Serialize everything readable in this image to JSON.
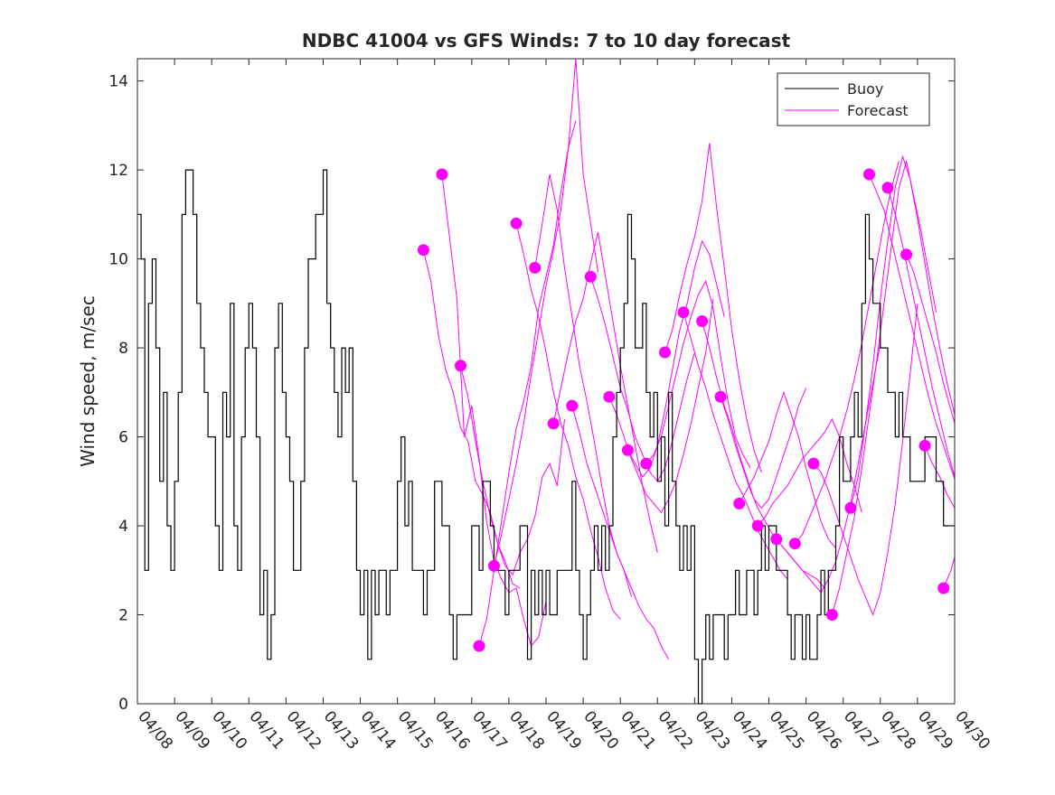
{
  "chart_data": {
    "type": "line",
    "title": "NDBC 41004 vs GFS Winds: 7 to 10 day forecast",
    "xlabel": "",
    "ylabel": "Wind speed, m/sec",
    "x_range": [
      "04/08",
      "04/30"
    ],
    "ylim": [
      0,
      14.5
    ],
    "x_tick_labels": [
      "04/08",
      "04/09",
      "04/10",
      "04/11",
      "04/12",
      "04/13",
      "04/14",
      "04/15",
      "04/16",
      "04/17",
      "04/18",
      "04/19",
      "04/20",
      "04/21",
      "04/22",
      "04/23",
      "04/24",
      "04/25",
      "04/26",
      "04/27",
      "04/28",
      "04/29",
      "04/30"
    ],
    "y_ticks": [
      0,
      2,
      4,
      6,
      8,
      10,
      12,
      14
    ],
    "grid": false,
    "legend": {
      "placement": "top-right",
      "entries": [
        "Buoy",
        "Forecast"
      ]
    },
    "colors": {
      "buoy": "#000000",
      "forecast": "#ff00ff",
      "axes": "#262626"
    },
    "series": [
      {
        "name": "Buoy",
        "style": "black step line",
        "x_days_from_0408": [
          0,
          0.1,
          0.2,
          0.3,
          0.4,
          0.5,
          0.6,
          0.7,
          0.8,
          0.9,
          1.0,
          1.1,
          1.2,
          1.3,
          1.4,
          1.5,
          1.6,
          1.7,
          1.8,
          1.9,
          2.0,
          2.1,
          2.2,
          2.3,
          2.4,
          2.5,
          2.6,
          2.7,
          2.8,
          2.9,
          3.0,
          3.1,
          3.2,
          3.3,
          3.4,
          3.5,
          3.6,
          3.7,
          3.8,
          3.9,
          4.0,
          4.1,
          4.2,
          4.3,
          4.4,
          4.5,
          4.6,
          4.7,
          4.8,
          4.9,
          5.0,
          5.1,
          5.2,
          5.3,
          5.4,
          5.5,
          5.6,
          5.7,
          5.8,
          5.9,
          6.0,
          6.1,
          6.2,
          6.3,
          6.4,
          6.5,
          6.6,
          6.7,
          6.8,
          6.9,
          7.0,
          7.1,
          7.2,
          7.3,
          7.4,
          7.5,
          7.6,
          7.7,
          7.8,
          7.9,
          8.0,
          8.1,
          8.2,
          8.3,
          8.4,
          8.5,
          8.6,
          8.7,
          8.8,
          8.9,
          9.0,
          9.1,
          9.2,
          9.3,
          9.4,
          9.5,
          9.6,
          9.7,
          9.8,
          9.9,
          10.0,
          10.1,
          10.2,
          10.3,
          10.4,
          10.5,
          10.6,
          10.7,
          10.8,
          10.9,
          11.0,
          11.1,
          11.2,
          11.3,
          11.4,
          11.5,
          11.6,
          11.7,
          11.8,
          11.9,
          12.0,
          12.1,
          12.2,
          12.3,
          12.4,
          12.5,
          12.6,
          12.7,
          12.8,
          12.9,
          13.0,
          13.1,
          13.2,
          13.3,
          13.4,
          13.5,
          13.6,
          13.7,
          13.8,
          13.9,
          14.0,
          14.1,
          14.2,
          14.3,
          14.4,
          14.5,
          14.6,
          14.7,
          14.8,
          14.9,
          15.0,
          15.1,
          15.2,
          15.3,
          15.4,
          15.5,
          15.6,
          15.7,
          15.8,
          15.9,
          16.0,
          16.1,
          16.2,
          16.3,
          16.4,
          16.5,
          16.6,
          16.7,
          16.8,
          16.9,
          17.0,
          17.1,
          17.2,
          17.3,
          17.4,
          17.5,
          17.6,
          17.7,
          17.8,
          17.9,
          18.0,
          18.1,
          18.2,
          18.3,
          18.4,
          18.5,
          18.6,
          18.7,
          18.8,
          18.9,
          19.0,
          19.1,
          19.2,
          19.3,
          19.4,
          19.5,
          19.6,
          19.7,
          19.8,
          19.9,
          20.0,
          20.1,
          20.2,
          20.3,
          20.4,
          20.5,
          20.6,
          20.7,
          20.8,
          20.9,
          21.0,
          21.1,
          21.2,
          21.3,
          21.4,
          21.5,
          21.6,
          21.7,
          21.8,
          21.9,
          22.0
        ],
        "values": [
          11,
          10,
          3,
          9,
          10,
          8,
          5,
          7,
          4,
          3,
          5,
          7,
          11,
          12,
          12,
          11,
          9,
          8,
          7,
          6,
          6,
          4,
          3,
          7,
          6,
          9,
          4,
          3,
          6,
          8,
          9,
          8,
          6,
          2,
          3,
          1,
          2,
          8,
          9,
          7,
          6,
          5,
          3,
          3,
          5,
          8,
          10,
          10,
          11,
          11,
          12,
          9,
          8,
          7,
          6,
          8,
          7,
          8,
          5,
          3,
          2,
          3,
          1,
          3,
          2,
          3,
          3,
          2,
          3,
          3,
          5,
          6,
          4,
          5,
          3,
          3,
          3,
          2,
          3,
          3,
          5,
          5,
          4,
          4,
          2,
          1,
          2,
          2,
          2,
          2,
          4,
          4,
          3,
          5,
          5,
          4,
          3,
          3,
          3,
          2,
          3,
          3,
          3,
          4,
          4,
          1,
          3,
          2,
          3,
          2,
          3,
          2,
          2,
          3,
          3,
          3,
          3,
          5,
          3,
          2,
          1,
          2,
          3,
          4,
          3,
          4,
          3,
          4,
          6,
          7,
          8,
          9,
          11,
          10,
          8,
          8,
          9,
          7,
          6,
          7,
          5,
          6,
          4,
          7,
          5,
          4,
          3,
          4,
          3,
          4,
          1,
          0,
          1,
          2,
          1,
          2,
          2,
          2,
          1,
          2,
          2,
          3,
          2,
          2,
          3,
          3,
          2,
          3,
          4,
          3,
          4,
          4,
          3,
          3,
          3,
          2,
          1,
          2,
          2,
          1,
          2,
          1,
          1,
          2,
          3,
          2,
          3,
          3,
          4,
          6,
          5,
          5,
          6,
          7,
          6,
          9,
          11,
          10,
          9,
          9,
          8,
          8,
          7,
          7,
          6,
          7,
          6,
          6,
          5,
          5,
          5,
          5,
          6,
          6,
          6,
          5,
          5,
          4,
          4,
          4
        ]
      },
      {
        "name": "Forecast",
        "style": "magenta thin lines (multiple overlapping forecast runs)",
        "runs": [
          {
            "x_start_day": 7.7,
            "values": [
              10.2,
              9.5,
              8.3,
              7.5,
              7.0,
              6.2,
              5.9,
              5.0,
              4.7,
              4.3,
              3.6,
              3.2,
              2.7,
              2.6
            ]
          },
          {
            "x_start_day": 8.2,
            "values": [
              11.9,
              10.5,
              9.1,
              6.0,
              6.7,
              5.5,
              4.1,
              3.2,
              2.8,
              2.5,
              2.6,
              1.9,
              1.3,
              1.5,
              2.3
            ]
          },
          {
            "x_start_day": 8.7,
            "values": [
              7.6,
              6.9,
              5.9,
              5.0,
              4.2,
              3.6,
              3.1,
              2.9,
              3.4,
              3.7,
              4.2,
              5.1,
              5.4,
              4.9,
              6.4
            ]
          },
          {
            "x_start_day": 9.2,
            "values": [
              1.3,
              1.9,
              3.0,
              4.1,
              5.2,
              6.2,
              6.8,
              7.6,
              8.9,
              9.6,
              10.3,
              11.5,
              12.5,
              13.1
            ]
          },
          {
            "x_start_day": 9.6,
            "values": [
              3.1,
              3.8,
              4.6,
              5.4,
              6.3,
              7.4,
              8.4,
              9.4,
              10.2,
              11.1,
              12.5,
              14.5,
              11.9,
              10.8,
              9.7
            ]
          },
          {
            "x_start_day": 10.2,
            "values": [
              10.8,
              10.1,
              9.3,
              8.7,
              7.9,
              7.0,
              6.3,
              5.8,
              5.1,
              4.6,
              3.9,
              3.3,
              2.6,
              2.1,
              1.9
            ]
          },
          {
            "x_start_day": 10.7,
            "values": [
              9.8,
              10.8,
              11.9,
              11.1,
              9.8,
              8.7,
              7.6,
              6.8,
              5.9,
              4.9,
              4.0,
              3.4,
              3.0,
              2.4
            ]
          },
          {
            "x_start_day": 11.2,
            "values": [
              6.3,
              7.1,
              7.9,
              8.6,
              9.1,
              9.9,
              10.6,
              9.6,
              8.6,
              7.6,
              6.7,
              5.8,
              4.9,
              4.1,
              3.4
            ]
          },
          {
            "x_start_day": 11.7,
            "values": [
              6.7,
              6.1,
              5.4,
              4.9,
              4.4,
              3.9,
              3.4,
              3.0,
              2.6,
              2.2,
              1.9,
              1.7,
              1.3,
              1.0
            ]
          },
          {
            "x_start_day": 12.2,
            "values": [
              9.6,
              9.1,
              8.5,
              7.8,
              7.1,
              6.6,
              6.0,
              5.6,
              5.2,
              5.0,
              5.3,
              5.9,
              6.6,
              7.3,
              7.9
            ]
          },
          {
            "x_start_day": 12.7,
            "values": [
              6.9,
              6.5,
              6.0,
              5.5,
              5.1,
              4.7,
              4.5,
              4.3,
              4.6,
              5.0,
              5.6,
              6.3,
              7.1,
              7.9,
              9.1
            ]
          },
          {
            "x_start_day": 13.2,
            "values": [
              5.7,
              5.4,
              5.1,
              5.3,
              5.8,
              6.6,
              7.5,
              8.4,
              9.0,
              9.8,
              10.4,
              10.1,
              9.4,
              8.7
            ]
          },
          {
            "x_start_day": 13.7,
            "values": [
              5.4,
              5.6,
              6.0,
              6.7,
              7.4,
              8.1,
              8.7,
              9.2,
              9.5,
              8.9,
              7.8,
              6.8,
              6.0,
              5.6,
              5.3
            ]
          },
          {
            "x_start_day": 14.2,
            "values": [
              7.9,
              8.4,
              9.2,
              9.9,
              10.5,
              11.3,
              12.6,
              11.1,
              9.8,
              8.4,
              7.3,
              6.4,
              5.7,
              5.2
            ]
          },
          {
            "x_start_day": 14.7,
            "values": [
              8.8,
              8.2,
              7.6,
              7.1,
              6.5,
              6.0,
              5.5,
              5.0,
              4.7,
              4.3,
              3.9,
              3.6,
              3.3,
              3.0,
              2.8
            ]
          },
          {
            "x_start_day": 15.2,
            "values": [
              8.6,
              8.0,
              7.3,
              6.7,
              6.2,
              5.6,
              5.1,
              4.6,
              4.4,
              4.6,
              5.1,
              5.6,
              6.1,
              6.7,
              7.1
            ]
          },
          {
            "x_start_day": 15.7,
            "values": [
              6.9,
              6.4,
              5.8,
              5.3,
              4.8,
              4.4,
              4.1,
              3.8,
              3.6,
              3.4,
              3.2,
              3.0,
              2.9,
              2.8,
              2.6
            ]
          },
          {
            "x_start_day": 16.2,
            "values": [
              4.5,
              4.8,
              5.1,
              5.5,
              5.9,
              6.5,
              7.0,
              6.5,
              6.0,
              5.3,
              4.7,
              4.1,
              3.7,
              3.5
            ]
          },
          {
            "x_start_day": 16.7,
            "values": [
              4.0,
              4.2,
              4.5,
              4.7,
              4.9,
              5.2,
              5.5,
              5.7,
              5.9,
              6.1,
              6.4,
              6.0,
              5.4,
              4.9,
              4.3
            ]
          },
          {
            "x_start_day": 17.2,
            "values": [
              3.7,
              3.5,
              3.3,
              3.1,
              2.9,
              2.7,
              2.5,
              2.8,
              3.2,
              3.8,
              4.5,
              5.4,
              6.3,
              7.2,
              8.1
            ]
          },
          {
            "x_start_day": 17.7,
            "values": [
              3.6,
              3.8,
              4.2,
              4.6,
              5.0,
              5.5,
              6.0,
              6.6,
              7.3,
              8.1,
              9.0,
              9.9,
              10.8,
              11.6,
              12.2
            ]
          },
          {
            "x_start_day": 18.2,
            "values": [
              5.4,
              5.2,
              4.8,
              4.3,
              3.8,
              3.3,
              2.8,
              2.4,
              2.0,
              2.5,
              3.4,
              4.5,
              5.9,
              7.4,
              9.0
            ]
          },
          {
            "x_start_day": 18.7,
            "values": [
              2.0,
              2.6,
              3.4,
              4.2,
              5.3,
              6.5,
              7.7,
              9.0,
              10.3,
              11.6,
              12.2,
              11.4,
              10.6,
              9.7,
              8.8
            ]
          },
          {
            "x_start_day": 19.2,
            "values": [
              4.4,
              5.1,
              6.3,
              7.6,
              9.1,
              10.4,
              11.6,
              12.3,
              11.8,
              10.9,
              9.9,
              8.9,
              8.0,
              7.2,
              6.5
            ]
          },
          {
            "x_start_day": 19.7,
            "values": [
              11.9,
              11.5,
              11.1,
              10.4,
              9.7,
              9.0,
              8.3,
              7.6,
              6.9,
              6.3,
              5.8,
              5.3,
              4.8
            ]
          },
          {
            "x_start_day": 20.2,
            "values": [
              11.6,
              11.0,
              10.3,
              9.5,
              8.7,
              7.9,
              7.1,
              6.4,
              5.7,
              5.1,
              4.6,
              4.2,
              4.0,
              4.1
            ]
          },
          {
            "x_start_day": 20.7,
            "values": [
              10.1,
              9.7,
              9.1,
              8.5,
              7.9,
              7.2,
              6.6,
              6.0,
              5.4,
              4.9,
              4.5,
              4.2
            ]
          },
          {
            "x_start_day": 21.2,
            "values": [
              5.8,
              5.4,
              5.1,
              4.7,
              4.4,
              4.1,
              3.9,
              3.7,
              3.9,
              4.2
            ]
          },
          {
            "x_start_day": 21.7,
            "values": [
              2.6,
              3.0,
              3.6,
              4.2,
              4.9,
              5.3
            ]
          }
        ],
        "markers": {
          "style": "filled magenta circles (forecast start values)",
          "x_days_from_0408": [
            7.7,
            8.2,
            8.7,
            9.2,
            9.6,
            10.2,
            10.7,
            11.2,
            11.7,
            12.2,
            12.7,
            13.2,
            13.7,
            14.2,
            14.7,
            15.2,
            15.7,
            16.2,
            16.7,
            17.2,
            17.7,
            18.2,
            18.7,
            19.2,
            19.7,
            20.2,
            20.7,
            21.2,
            21.7
          ],
          "values": [
            10.2,
            11.9,
            7.6,
            1.3,
            3.1,
            10.8,
            9.8,
            6.3,
            6.7,
            9.6,
            6.9,
            5.7,
            5.4,
            7.9,
            8.8,
            8.6,
            6.9,
            4.5,
            4.0,
            3.7,
            3.6,
            5.4,
            2.0,
            4.4,
            11.9,
            11.6,
            10.1,
            5.8,
            2.6
          ]
        }
      }
    ]
  }
}
